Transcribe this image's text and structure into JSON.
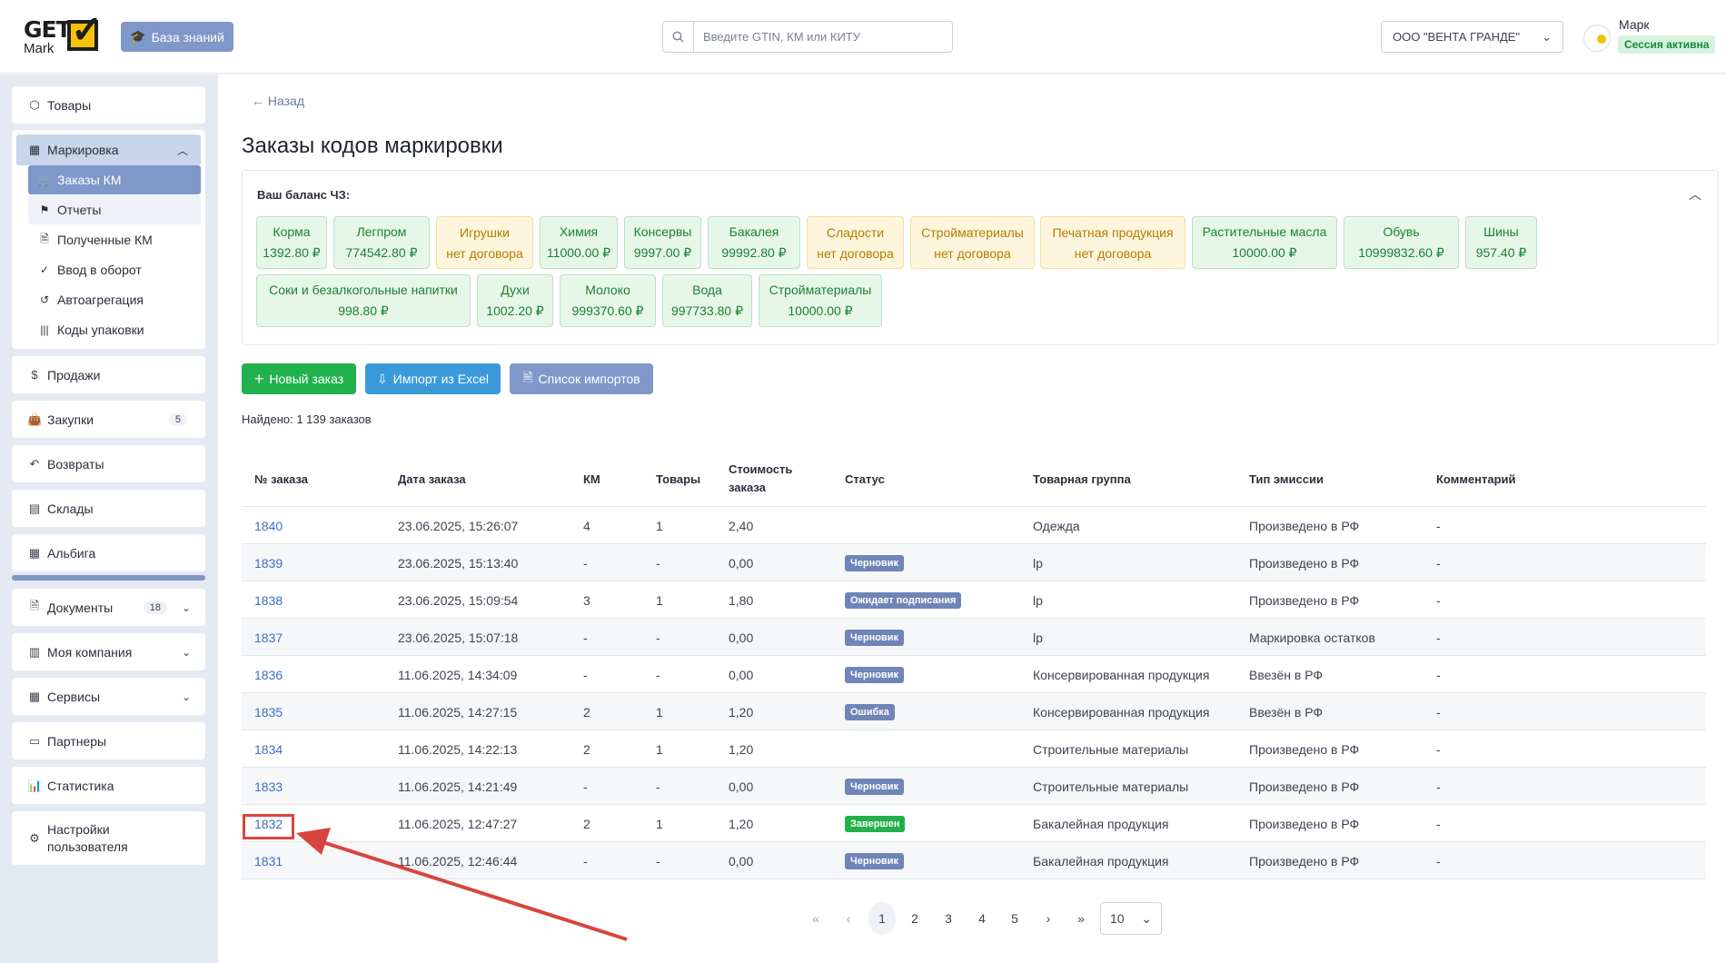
{
  "header": {
    "logo_get": "GET",
    "logo_mark": "Mark",
    "knowledge_base": "База знаний",
    "search_placeholder": "Введите GTIN, КМ или КИТУ",
    "company": "ООО \"ВЕНТА ГРАНДЕ\"",
    "user_name": "Марк",
    "session_status": "Сессия активна"
  },
  "sidebar": {
    "goods": "Товары",
    "marking": "Маркировка",
    "marking_items": [
      "Заказы КМ",
      "Отчеты",
      "Полученные КМ",
      "Ввод в оборот",
      "Автоагрегация",
      "Коды упаковки"
    ],
    "sales": "Продажи",
    "purchases": "Закупки",
    "purchases_count": "5",
    "returns": "Возвраты",
    "warehouses": "Склады",
    "albiga": "Альбига",
    "documents": "Документы",
    "documents_count": "18",
    "my_company": "Моя компания",
    "services": "Сервисы",
    "partners": "Партнеры",
    "statistics": "Статистика",
    "user_settings_1": "Настройки",
    "user_settings_2": "пользователя"
  },
  "main": {
    "back": "Назад",
    "title": "Заказы кодов маркировки",
    "balance_title": "Ваш баланс ЧЗ:",
    "balances": [
      {
        "name": "Корма",
        "value": "1392.80 ₽",
        "status": "ok"
      },
      {
        "name": "Легпром",
        "value": "774542.80 ₽",
        "status": "ok"
      },
      {
        "name": "Игрушки",
        "value": "нет договора",
        "status": "warn"
      },
      {
        "name": "Химия",
        "value": "11000.00 ₽",
        "status": "ok"
      },
      {
        "name": "Консервы",
        "value": "9997.00 ₽",
        "status": "ok"
      },
      {
        "name": "Бакалея",
        "value": "99992.80 ₽",
        "status": "ok"
      },
      {
        "name": "Сладости",
        "value": "нет договора",
        "status": "warn"
      },
      {
        "name": "Стройматериалы",
        "value": "нет договора",
        "status": "warn"
      },
      {
        "name": "Печатная продукция",
        "value": "нет договора",
        "status": "warn"
      },
      {
        "name": "Растительные масла",
        "value": "10000.00 ₽",
        "status": "ok"
      },
      {
        "name": "Обувь",
        "value": "10999832.60 ₽",
        "status": "ok"
      },
      {
        "name": "Шины",
        "value": "957.40 ₽",
        "status": "ok"
      },
      {
        "name": "Соки и безалкогольные напитки",
        "value": "998.80 ₽",
        "status": "ok"
      },
      {
        "name": "Духи",
        "value": "1002.20 ₽",
        "status": "ok"
      },
      {
        "name": "Молоко",
        "value": "999370.60 ₽",
        "status": "ok"
      },
      {
        "name": "Вода",
        "value": "997733.80 ₽",
        "status": "ok"
      },
      {
        "name": "Стройматериалы",
        "value": "10000.00 ₽",
        "status": "ok"
      }
    ],
    "new_order": "Новый заказ",
    "import_excel": "Импорт из Excel",
    "import_list": "Список импортов",
    "found": "Найдено: 1 139 заказов"
  },
  "table": {
    "headers": {
      "order_no": "№ заказа",
      "date": "Дата заказа",
      "km": "КМ",
      "goods": "Товары",
      "cost_1": "Стоимость",
      "cost_2": "заказа",
      "status": "Статус",
      "group": "Товарная группа",
      "emission": "Тип эмиссии",
      "comment": "Комментарий"
    },
    "rows": [
      {
        "id": "1840",
        "date": "23.06.2025, 15:26:07",
        "km": "4",
        "goods": "1",
        "cost": "2,40",
        "status": "",
        "group": "Одежда",
        "emission": "Произведено в РФ",
        "comment": "-"
      },
      {
        "id": "1839",
        "date": "23.06.2025, 15:13:40",
        "km": "-",
        "goods": "-",
        "cost": "0,00",
        "status": "Черновик",
        "group": "lp",
        "emission": "Произведено в РФ",
        "comment": "-"
      },
      {
        "id": "1838",
        "date": "23.06.2025, 15:09:54",
        "km": "3",
        "goods": "1",
        "cost": "1,80",
        "status": "Ожидает подписания",
        "group": "lp",
        "emission": "Произведено в РФ",
        "comment": "-"
      },
      {
        "id": "1837",
        "date": "23.06.2025, 15:07:18",
        "km": "-",
        "goods": "-",
        "cost": "0,00",
        "status": "Черновик",
        "group": "lp",
        "emission": "Маркировка остатков",
        "comment": "-"
      },
      {
        "id": "1836",
        "date": "11.06.2025, 14:34:09",
        "km": "-",
        "goods": "-",
        "cost": "0,00",
        "status": "Черновик",
        "group": "Консервированная продукция",
        "emission": "Ввезён в РФ",
        "comment": "-"
      },
      {
        "id": "1835",
        "date": "11.06.2025, 14:27:15",
        "km": "2",
        "goods": "1",
        "cost": "1,20",
        "status": "Ошибка",
        "group": "Консервированная продукция",
        "emission": "Ввезён в РФ",
        "comment": "-"
      },
      {
        "id": "1834",
        "date": "11.06.2025, 14:22:13",
        "km": "2",
        "goods": "1",
        "cost": "1,20",
        "status": "",
        "group": "Строительные материалы",
        "emission": "Произведено в РФ",
        "comment": "-"
      },
      {
        "id": "1833",
        "date": "11.06.2025, 14:21:49",
        "km": "-",
        "goods": "-",
        "cost": "0,00",
        "status": "Черновик",
        "group": "Строительные материалы",
        "emission": "Произведено в РФ",
        "comment": "-"
      },
      {
        "id": "1832",
        "date": "11.06.2025, 12:47:27",
        "km": "2",
        "goods": "1",
        "cost": "1,20",
        "status": "Завершен",
        "group": "Бакалейная продукция",
        "emission": "Произведено в РФ",
        "comment": "-"
      },
      {
        "id": "1831",
        "date": "11.06.2025, 12:46:44",
        "km": "-",
        "goods": "-",
        "cost": "0,00",
        "status": "Черновик",
        "group": "Бакалейная продукция",
        "emission": "Произведено в РФ",
        "comment": "-"
      }
    ]
  },
  "status_colors": {
    "Черновик": "#6f85b8",
    "Ожидает подписания": "#6f85b8",
    "Ошибка": "#6f85b8",
    "Завершен": "#22b14c"
  },
  "pagination": {
    "first": "«",
    "prev": "‹",
    "pages": [
      "1",
      "2",
      "3",
      "4",
      "5"
    ],
    "current": "1",
    "next": "›",
    "last": "»",
    "page_size": "10"
  },
  "colors": {
    "accent": "#7f98c9",
    "success": "#22b14c",
    "import": "#3a9ad9",
    "annotation": "#d8453e"
  }
}
